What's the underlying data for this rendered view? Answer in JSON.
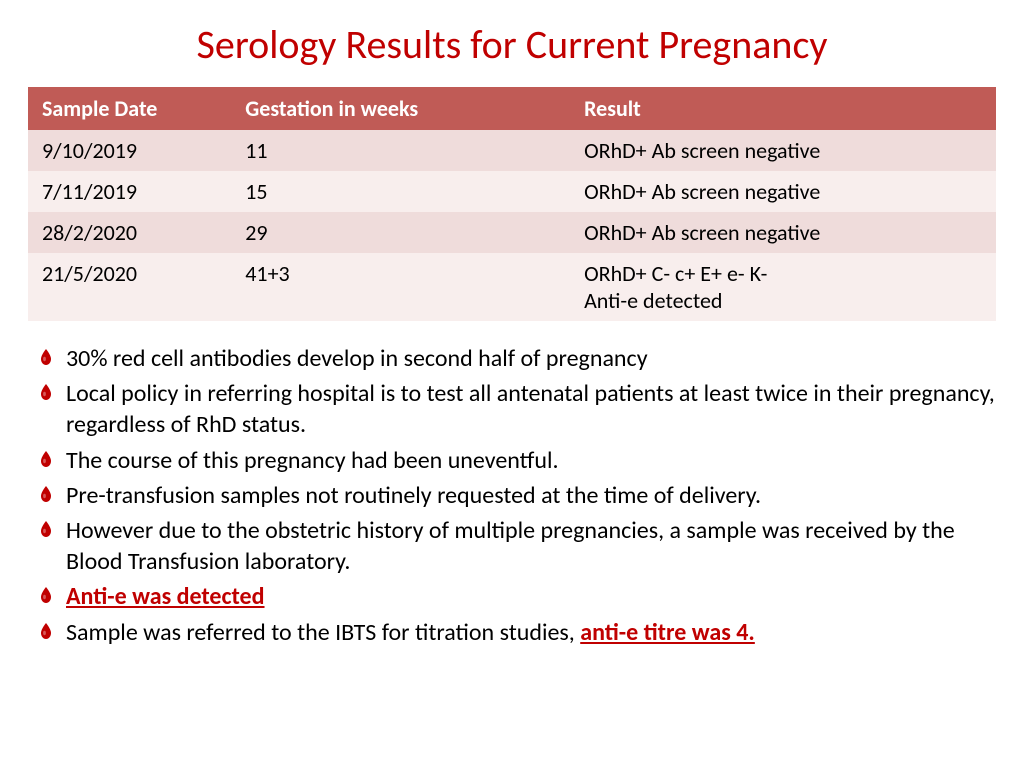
{
  "title": {
    "text": "Serology Results for Current Pregnancy",
    "color": "#c00000",
    "fontsize": 40
  },
  "table": {
    "header_bg": "#c05b56",
    "header_fg": "#ffffff",
    "header_fontsize": 22,
    "row_colors": [
      "#efdcdb",
      "#f8eeed"
    ],
    "cell_fg": "#000000",
    "cell_fontsize": 22,
    "col_widths": [
      "21%",
      "35%",
      "44%"
    ],
    "columns": [
      "Sample Date",
      "Gestation in weeks",
      "Result"
    ],
    "rows": [
      [
        "9/10/2019",
        "11",
        "ORhD+ Ab screen negative"
      ],
      [
        "7/11/2019",
        "15",
        "ORhD+ Ab screen negative"
      ],
      [
        "28/2/2020",
        "29",
        "ORhD+ Ab screen negative"
      ],
      [
        "21/5/2020",
        "41+3",
        "ORhD+ C- c+ E+ e- K-\nAnti-e detected"
      ]
    ]
  },
  "bullets": {
    "fontsize": 24,
    "line_height": 1.3,
    "text_color": "#000000",
    "emph_color": "#c00000",
    "marker_color": "#c00000",
    "items": [
      {
        "runs": [
          {
            "t": "30% red cell antibodies develop in second half of pregnancy"
          }
        ]
      },
      {
        "runs": [
          {
            "t": "Local policy in referring hospital is to test all antenatal patients at least twice in their pregnancy, regardless of RhD status."
          }
        ]
      },
      {
        "runs": [
          {
            "t": "The course of this pregnancy had been uneventful."
          }
        ]
      },
      {
        "runs": [
          {
            "t": "Pre-transfusion samples not routinely requested at the time of delivery."
          }
        ]
      },
      {
        "runs": [
          {
            "t": "However due to the obstetric history of multiple pregnancies, a sample was received by the Blood Transfusion laboratory."
          }
        ]
      },
      {
        "runs": [
          {
            "t": "Anti-e was detected",
            "emph": true
          }
        ]
      },
      {
        "runs": [
          {
            "t": "Sample was referred to the IBTS for titration studies, "
          },
          {
            "t": "anti-e titre was 4.",
            "emph": true
          }
        ]
      }
    ]
  }
}
